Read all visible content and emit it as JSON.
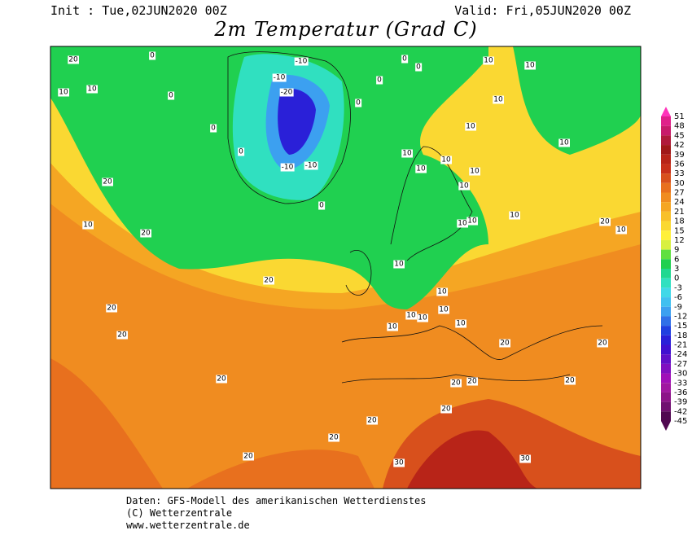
{
  "header": {
    "init": "Init : Tue,02JUN2020 00Z",
    "valid": "Valid: Fri,05JUN2020 00Z",
    "title": "2m Temperatur (Grad C)"
  },
  "colorbar": {
    "ticks": [
      51,
      48,
      45,
      42,
      39,
      36,
      33,
      30,
      27,
      24,
      21,
      18,
      15,
      12,
      9,
      6,
      3,
      0,
      -3,
      -6,
      -9,
      -12,
      -15,
      -18,
      -21,
      -24,
      -27,
      -30,
      -33,
      -36,
      -39,
      -42,
      -45
    ],
    "colors": [
      "#ff33bb",
      "#e0208a",
      "#c81a6a",
      "#b01a3a",
      "#a01818",
      "#b82418",
      "#c8301a",
      "#d8501c",
      "#e8701e",
      "#f08c20",
      "#f5a623",
      "#f8c02a",
      "#fad832",
      "#fff03a",
      "#d8f040",
      "#60e040",
      "#20d050",
      "#20d890",
      "#30e0c0",
      "#40d8e8",
      "#40c0f0",
      "#3ca0f0",
      "#3070e8",
      "#2040e0",
      "#2a20d8",
      "#4010d0",
      "#6010c8",
      "#8010c0",
      "#a010b8",
      "#a018a0",
      "#8c1488",
      "#701070",
      "#500850"
    ]
  },
  "contour_labels": [
    "20",
    "10",
    "10",
    "0",
    "0",
    "-10",
    "-10",
    "-20",
    "0",
    "0",
    "0",
    "10",
    "10",
    "10",
    "10",
    "0",
    "0",
    "0",
    "-10",
    "-10",
    "0",
    "10",
    "10",
    "10",
    "10",
    "10",
    "10",
    "10",
    "10",
    "10",
    "10",
    "20",
    "10",
    "10",
    "10",
    "10",
    "10",
    "10",
    "10",
    "20",
    "20",
    "20",
    "20",
    "20",
    "20",
    "20",
    "20",
    "20",
    "20",
    "20",
    "20",
    "20",
    "30",
    "30",
    "20",
    "10",
    "20"
  ],
  "footer": [
    "Daten: GFS-Modell des amerikanischen Wetterdienstes",
    "(C) Wetterzentrale",
    "www.wetterzentrale.de"
  ]
}
